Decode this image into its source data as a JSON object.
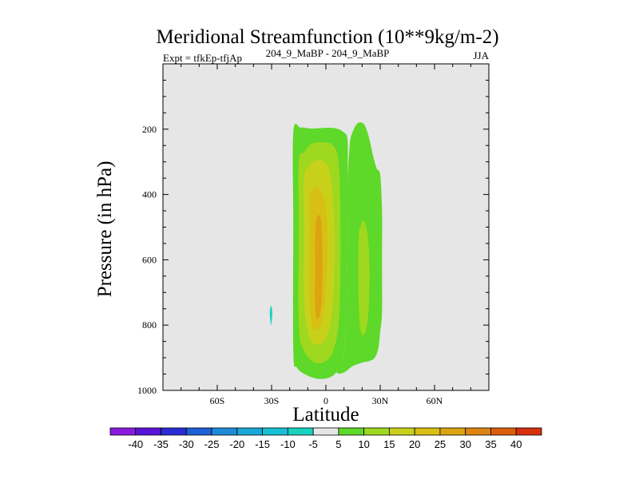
{
  "chart_data": {
    "type": "contour",
    "title": "Meridional Streamfunction (10**9kg/m-2)",
    "subtitle_left": "Expt = tfkEp-tfjAp",
    "subtitle_center": "204_9_MaBP - 204_9_MaBP",
    "subtitle_right": "JJA",
    "xlabel": "Latitude",
    "ylabel": "Pressure (in hPa)",
    "xlim": [
      -90,
      90
    ],
    "ylim": [
      1000,
      0
    ],
    "x_ticks": [
      {
        "value": -60,
        "label": "60S"
      },
      {
        "value": -30,
        "label": "30S"
      },
      {
        "value": 0,
        "label": "0"
      },
      {
        "value": 30,
        "label": "30N"
      },
      {
        "value": 60,
        "label": "60N"
      }
    ],
    "y_ticks": [
      {
        "value": 200,
        "label": "200"
      },
      {
        "value": 400,
        "label": "400"
      },
      {
        "value": 600,
        "label": "600"
      },
      {
        "value": 800,
        "label": "800"
      },
      {
        "value": 1000,
        "label": "1000"
      }
    ],
    "background_color": "#e6e6e6",
    "colorbar": {
      "levels": [
        -40,
        -35,
        -30,
        -25,
        -20,
        -15,
        -10,
        -5,
        5,
        10,
        15,
        20,
        25,
        30,
        35,
        40
      ],
      "labels": [
        "-40",
        "-35",
        "-30",
        "-25",
        "-20",
        "-15",
        "-10",
        "-5",
        "5",
        "10",
        "15",
        "20",
        "25",
        "30",
        "35",
        "40"
      ],
      "colors": [
        "#8a1bdc",
        "#5a14d8",
        "#2c2cd6",
        "#1f5fd9",
        "#1e8ad8",
        "#1aa7d8",
        "#16bfd5",
        "#18d2bf",
        "#e6e6e6",
        "#5ed829",
        "#9ed81f",
        "#c8d11a",
        "#d8bf14",
        "#dca510",
        "#dc840f",
        "#dc5e0c",
        "#d8300a"
      ]
    },
    "regions": [
      {
        "name": "band-sh-5-10",
        "level": "5-10",
        "color": "#5ed829",
        "points": [
          [
            -18,
            210
          ],
          [
            -14,
            195
          ],
          [
            -8,
            198
          ],
          [
            4,
            196
          ],
          [
            10,
            210
          ],
          [
            12,
            235
          ],
          [
            12,
            330
          ],
          [
            12,
            555
          ],
          [
            11,
            810
          ],
          [
            9,
            905
          ],
          [
            7,
            935
          ],
          [
            3,
            958
          ],
          [
            -3,
            965
          ],
          [
            -10,
            955
          ],
          [
            -16,
            930
          ],
          [
            -18,
            880
          ],
          [
            -18,
            500
          ],
          [
            -18,
            210
          ]
        ]
      },
      {
        "name": "band-sh-10-15",
        "level": "10-15",
        "color": "#9ed81f",
        "points": [
          [
            -15,
            300
          ],
          [
            -12,
            270
          ],
          [
            -8,
            245
          ],
          [
            -2,
            240
          ],
          [
            4,
            250
          ],
          [
            7,
            300
          ],
          [
            8,
            450
          ],
          [
            8,
            650
          ],
          [
            7,
            800
          ],
          [
            4,
            880
          ],
          [
            0,
            910
          ],
          [
            -6,
            915
          ],
          [
            -12,
            880
          ],
          [
            -15,
            800
          ],
          [
            -15,
            500
          ],
          [
            -15,
            300
          ]
        ]
      },
      {
        "name": "band-sh-15-20",
        "level": "15-20",
        "color": "#c8d11a",
        "points": [
          [
            -12,
            350
          ],
          [
            -9,
            310
          ],
          [
            -5,
            295
          ],
          [
            -1,
            300
          ],
          [
            2,
            330
          ],
          [
            4,
            420
          ],
          [
            5,
            560
          ],
          [
            4,
            720
          ],
          [
            2,
            810
          ],
          [
            -2,
            855
          ],
          [
            -7,
            855
          ],
          [
            -10,
            820
          ],
          [
            -12,
            720
          ],
          [
            -12,
            500
          ],
          [
            -12,
            350
          ]
        ]
      },
      {
        "name": "band-sh-20-25",
        "level": "20-25",
        "color": "#d8bf14",
        "points": [
          [
            -9,
            420
          ],
          [
            -7,
            380
          ],
          [
            -3,
            385
          ],
          [
            0,
            440
          ],
          [
            1,
            560
          ],
          [
            0,
            700
          ],
          [
            -2,
            790
          ],
          [
            -5,
            815
          ],
          [
            -8,
            790
          ],
          [
            -9,
            700
          ],
          [
            -9,
            500
          ],
          [
            -9,
            420
          ]
        ]
      },
      {
        "name": "core-sh-25",
        "level": "25-30",
        "color": "#dca510",
        "points": [
          [
            -6,
            520
          ],
          [
            -5,
            470
          ],
          [
            -3,
            470
          ],
          [
            -2,
            540
          ],
          [
            -2,
            680
          ],
          [
            -3,
            760
          ],
          [
            -5,
            780
          ],
          [
            -6,
            740
          ],
          [
            -6,
            620
          ],
          [
            -6,
            520
          ]
        ]
      },
      {
        "name": "band-nh-5-10",
        "level": "5-10",
        "color": "#5ed829",
        "points": [
          [
            12,
            360
          ],
          [
            13,
            260
          ],
          [
            14,
            220
          ],
          [
            17,
            185
          ],
          [
            20,
            180
          ],
          [
            22,
            195
          ],
          [
            24,
            230
          ],
          [
            26,
            280
          ],
          [
            28,
            320
          ],
          [
            30,
            340
          ],
          [
            31,
            450
          ],
          [
            31,
            600
          ],
          [
            31,
            760
          ],
          [
            30,
            820
          ],
          [
            29,
            870
          ],
          [
            27,
            900
          ],
          [
            24,
            910
          ],
          [
            20,
            915
          ],
          [
            15,
            925
          ],
          [
            10,
            945
          ],
          [
            6,
            945
          ],
          [
            9,
            905
          ],
          [
            11,
            810
          ],
          [
            12,
            555
          ],
          [
            12,
            360
          ]
        ]
      },
      {
        "name": "band-nh-10-15",
        "level": "10-15",
        "color": "#9ed81f",
        "points": [
          [
            18,
            540
          ],
          [
            19,
            500
          ],
          [
            21,
            480
          ],
          [
            23,
            520
          ],
          [
            24,
            600
          ],
          [
            24,
            700
          ],
          [
            23,
            790
          ],
          [
            21,
            830
          ],
          [
            19,
            810
          ],
          [
            18,
            720
          ],
          [
            18,
            540
          ]
        ]
      },
      {
        "name": "negative-sh-30",
        "level": "-10--5",
        "color": "#18d2bf",
        "points": [
          [
            -31,
            764
          ],
          [
            -30.3,
            740
          ],
          [
            -29.6,
            764
          ],
          [
            -30.3,
            800
          ],
          [
            -31,
            764
          ]
        ]
      }
    ]
  }
}
